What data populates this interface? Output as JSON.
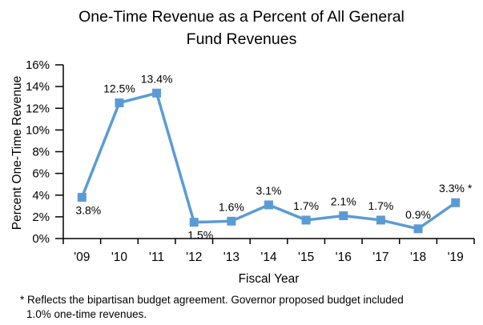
{
  "title_lines": [
    "One-Time Revenue as a Percent of All General",
    "Fund Revenues"
  ],
  "chart_data": {
    "type": "line",
    "title": "One-Time Revenue as a Percent of All General Fund Revenues",
    "xlabel": "Fiscal Year",
    "ylabel": "Percent One-Time Revenue",
    "ylim": [
      0,
      16
    ],
    "ytick_step": 2,
    "ytick_labels": [
      "0%",
      "2%",
      "4%",
      "6%",
      "8%",
      "10%",
      "12%",
      "14%",
      "16%"
    ],
    "categories": [
      "'09",
      "'10",
      "'11",
      "'12",
      "'13",
      "'14",
      "'15",
      "'16",
      "'17",
      "'18",
      "'19"
    ],
    "values": [
      3.8,
      12.5,
      13.4,
      1.5,
      1.6,
      3.1,
      1.7,
      2.1,
      1.7,
      0.9,
      3.3
    ],
    "point_labels": [
      "3.8%",
      "12.5%",
      "13.4%",
      "1.5%",
      "1.6%",
      "3.1%",
      "1.7%",
      "2.1%",
      "1.7%",
      "0.9%",
      "3.3% *"
    ],
    "label_placement": [
      "below",
      "above",
      "above",
      "below",
      "above",
      "above",
      "above",
      "above",
      "above",
      "above",
      "above"
    ],
    "line_color": "#5B9BD5",
    "axis_color": "#000000",
    "grid": false,
    "legend": "none"
  },
  "footnote_lines": [
    "* Reflects the bipartisan budget agreement. Governor proposed budget included",
    "1.0% one-time revenues."
  ]
}
